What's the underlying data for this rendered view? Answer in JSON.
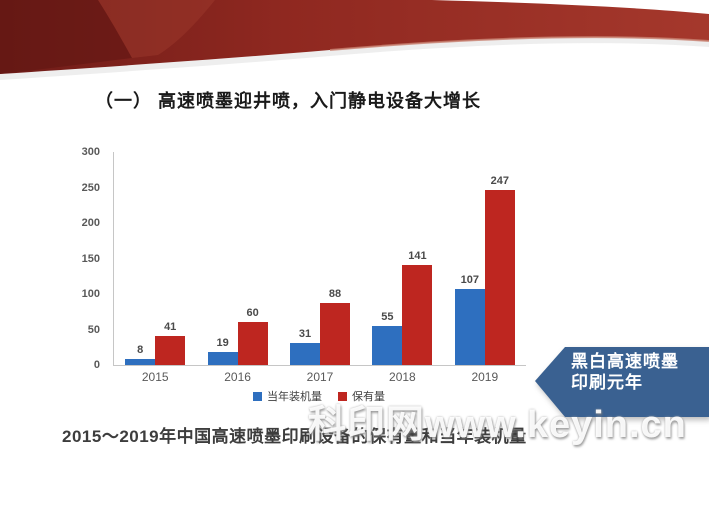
{
  "slide": {
    "title": "（一） 高速喷墨迎井喷，入门静电设备大增长",
    "caption": "2015～2019年中国高速喷墨印刷设备的保有量和当年装机量",
    "watermark": "科印网www.keyin.cn",
    "callout": {
      "line1": "黑白高速喷墨",
      "line2": "印刷元年"
    }
  },
  "chart_data": {
    "type": "bar",
    "categories": [
      "2015",
      "2016",
      "2017",
      "2018",
      "2019"
    ],
    "series": [
      {
        "name": "当年装机量",
        "color": "#2e6fbf",
        "values": [
          8,
          19,
          31,
          55,
          107
        ]
      },
      {
        "name": "保有量",
        "color": "#be2620",
        "values": [
          41,
          60,
          88,
          141,
          247
        ]
      }
    ],
    "title": "",
    "xlabel": "",
    "ylabel": "",
    "ylim": [
      0,
      300
    ],
    "yticks": [
      0,
      50,
      100,
      150,
      200,
      250,
      300
    ],
    "grid": false,
    "legend_position": "bottom",
    "data_labels": true
  },
  "colors": {
    "banner_dark": "#5f1513",
    "banner_main": "#8f2820",
    "banner_light": "#a5382c",
    "banner_edge_highlight": "#c8806f",
    "axis_line": "#c6c6c6",
    "tick_text": "#595959",
    "bar_blue": "#2e6fbf",
    "bar_red": "#be2620",
    "callout_blue": "#3a6191"
  }
}
